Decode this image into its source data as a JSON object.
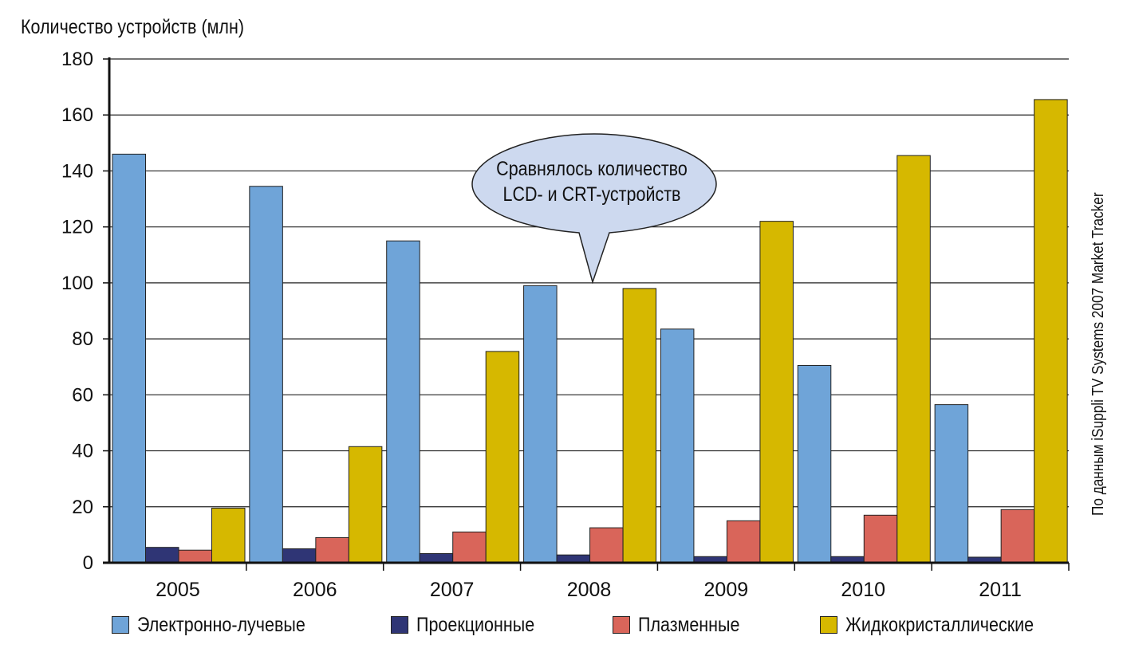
{
  "chart_data": {
    "type": "bar",
    "ylabel": "Количество устройств (млн)",
    "source_note": "По данным iSuppli TV Systems 2007 Market Tracker",
    "annotation": {
      "line1": "Сравнялось количество",
      "line2": "LCD- и CRT-устройств",
      "pointer_category": "2008"
    },
    "categories": [
      "2005",
      "2006",
      "2007",
      "2008",
      "2009",
      "2010",
      "2011"
    ],
    "ylim": [
      0,
      180
    ],
    "yticks": [
      0,
      20,
      40,
      60,
      80,
      100,
      120,
      140,
      160,
      180
    ],
    "grid": true,
    "legend_position": "bottom",
    "series": [
      {
        "name": "Электронно-лучевые",
        "color": "#6fa4d8",
        "values": [
          146,
          134.5,
          115,
          99,
          83.5,
          70.5,
          56.5
        ]
      },
      {
        "name": "Проекционные",
        "color": "#2f3575",
        "values": [
          5.5,
          5,
          3.3,
          2.8,
          2.2,
          2.2,
          2
        ]
      },
      {
        "name": "Плазменные",
        "color": "#d9655a",
        "values": [
          4.5,
          9,
          11,
          12.5,
          15,
          17,
          19
        ]
      },
      {
        "name": "Жидкокристаллические",
        "color": "#d6b800",
        "values": [
          19.5,
          41.5,
          75.5,
          98,
          122,
          145.5,
          165.5
        ]
      }
    ]
  }
}
